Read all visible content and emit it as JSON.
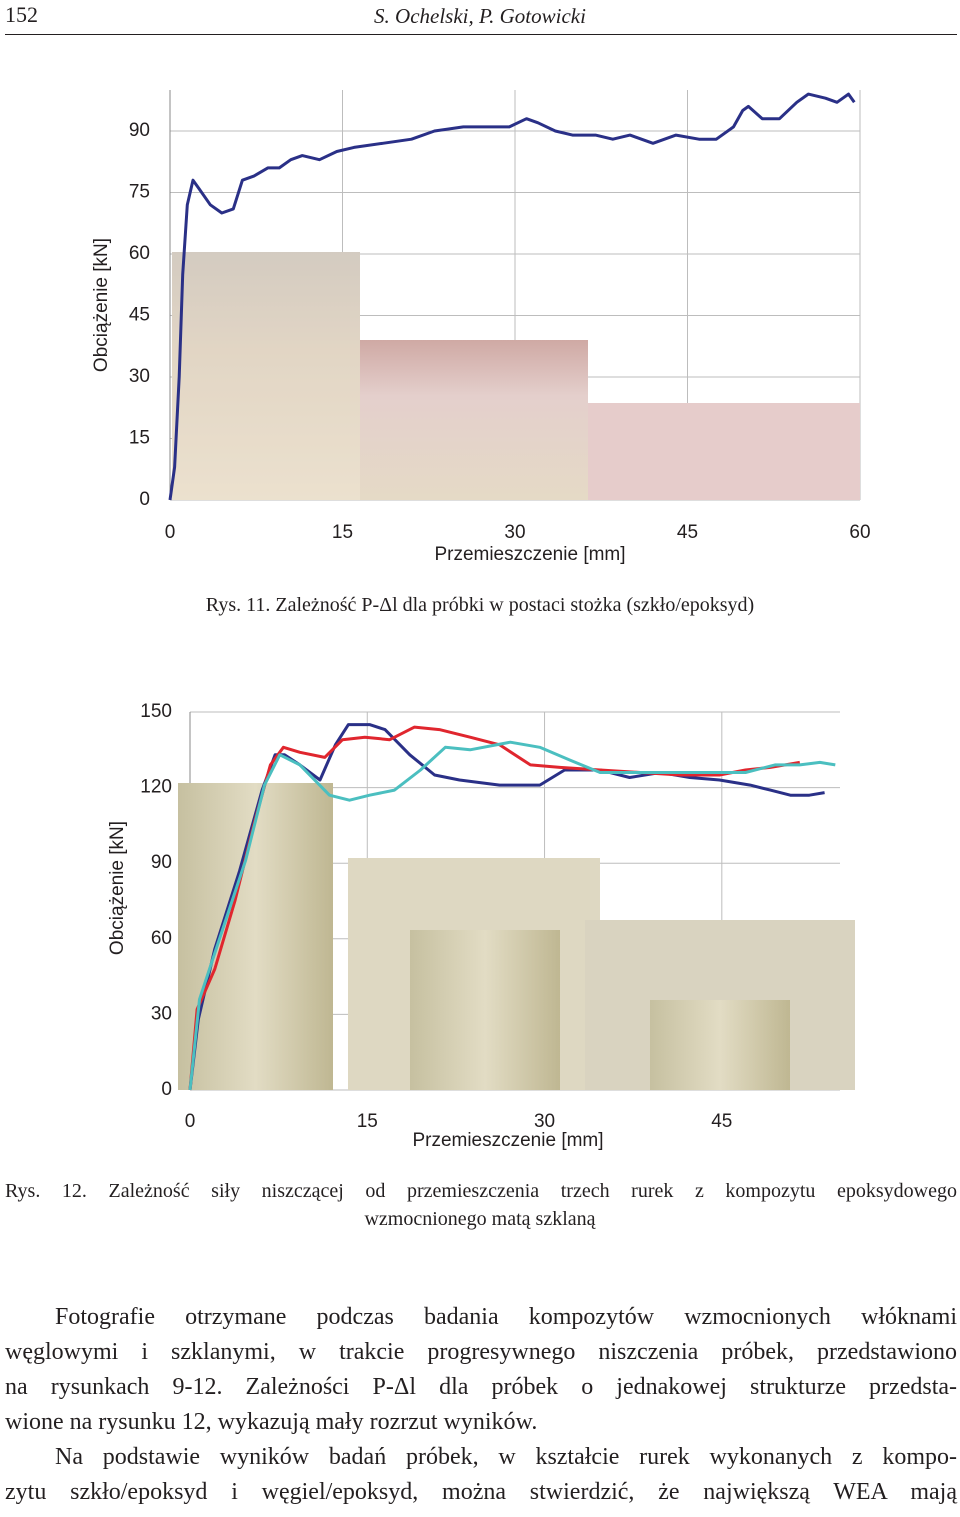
{
  "header": {
    "page_number": "152",
    "authors": "S. Ochelski, P. Gotowicki"
  },
  "chart_data": [
    {
      "type": "line",
      "x_label": "Przemieszczenie [mm]",
      "y_label": "Obciążenie [kN]",
      "xlim": [
        0,
        60
      ],
      "xticks": [
        0,
        15,
        30,
        45,
        60
      ],
      "ylim": [
        0,
        100
      ],
      "yticks": [
        0,
        15,
        30,
        45,
        60,
        75,
        90
      ],
      "grid": true,
      "series": [
        {
          "color": "#2a3087",
          "x": [
            0,
            0.4,
            0.8,
            1.1,
            1.5,
            2.0,
            2.5,
            3.5,
            4.5,
            5.5,
            6.3,
            7.3,
            8.5,
            9.5,
            10.5,
            11.5,
            13,
            14.5,
            16,
            18.5,
            21,
            23,
            25.5,
            27.5,
            29.5,
            31,
            32,
            33.5,
            35,
            37,
            38.5,
            40,
            42,
            44,
            46,
            47.5,
            49,
            49.8,
            50.3,
            51.5,
            53,
            54.5,
            55.5,
            57,
            58,
            58.5,
            59,
            59.5
          ],
          "values": [
            0,
            8,
            30,
            55,
            72,
            78,
            76,
            72,
            70,
            71,
            78,
            79,
            81,
            81,
            83,
            84,
            83,
            85,
            86,
            87,
            88,
            90,
            91,
            91,
            91,
            93,
            92,
            90,
            89,
            89,
            88,
            89,
            87,
            89,
            88,
            88,
            91,
            95,
            96,
            93,
            93,
            97,
            99,
            98,
            97,
            98,
            99,
            97
          ]
        }
      ]
    },
    {
      "type": "line",
      "x_label": "Przemieszczenie [mm]",
      "y_label": "Obciążenie [kN]",
      "xlim": [
        0,
        55
      ],
      "xticks": [
        0,
        15,
        30,
        45
      ],
      "ylim": [
        0,
        150
      ],
      "yticks": [
        0,
        30,
        60,
        90,
        120,
        150
      ],
      "grid": true,
      "series": [
        {
          "color": "#2a3087",
          "x": [
            0,
            0.7,
            2.1,
            4.2,
            6.1,
            7.2,
            8,
            9.3,
            11,
            12.3,
            13.4,
            15.2,
            16.5,
            18.6,
            20.7,
            22.8,
            26.2,
            29.6,
            31.7,
            34.7,
            37.2,
            39.8,
            42.3,
            44.8,
            47.4,
            49.1,
            50.8,
            52.4,
            53.7
          ],
          "values": [
            0,
            28,
            56,
            87,
            119,
            133,
            133,
            129,
            123,
            137,
            145,
            145,
            143,
            133,
            125,
            123,
            121,
            121,
            127,
            127,
            124,
            126,
            124,
            123,
            121,
            119,
            117,
            117,
            118
          ]
        },
        {
          "color": "#e0262e",
          "x": [
            0,
            0.6,
            2.1,
            3.8,
            5.5,
            6.8,
            7.9,
            9.3,
            11.4,
            12.9,
            14.8,
            16.9,
            19,
            21.1,
            23.7,
            26.2,
            28.8,
            31.3,
            34.7,
            38.1,
            41.5,
            44.8,
            47,
            49.1,
            51.6
          ],
          "values": [
            0,
            32,
            48,
            75,
            107,
            129,
            136,
            134,
            132,
            139,
            140,
            139,
            144,
            143,
            140,
            137,
            129,
            128,
            127,
            126,
            125,
            125,
            127,
            128,
            130
          ]
        },
        {
          "color": "#4bbfc0",
          "x": [
            0,
            0.8,
            2.5,
            4.7,
            6.3,
            7.6,
            9.3,
            11.8,
            13.5,
            15.2,
            17.3,
            19.5,
            21.6,
            23.7,
            27.1,
            29.6,
            32.1,
            34.7,
            38.1,
            41.5,
            44.8,
            47,
            49.5,
            51.6,
            53.3,
            54.6
          ],
          "values": [
            0,
            36,
            60,
            91,
            121,
            133,
            129,
            117,
            115,
            117,
            119,
            127,
            136,
            135,
            138,
            136,
            131,
            126,
            126,
            126,
            126,
            126,
            129,
            129,
            130,
            129
          ]
        }
      ]
    }
  ],
  "captions": [
    {
      "lines": [
        "Rys. 11. Zależność P-Δl dla próbki w postaci stożka (szkło/epoksyd)"
      ]
    },
    {
      "lines": [
        "Rys. 12. Zależność siły niszczącej od przemieszczenia trzech rurek z kompozytu epoksydowego",
        "wzmocnionego matą szklaną"
      ]
    }
  ],
  "body": {
    "paragraphs": [
      {
        "lines": [
          "Fotografie otrzymane podczas badania kompozytów wzmocnionych włóknami",
          "węglowymi i szklanymi, w trakcie progresywnego niszczenia próbek, przedstawiono",
          "na rysunkach 9-12. Zależności P-Δl dla próbek o jednakowej strukturze przedsta-",
          "wione na rysunku 12, wykazują mały rozrzut wyników."
        ]
      },
      {
        "lines": [
          "Na podstawie wyników badań próbek, w kształcie rurek wykonanych z kompo-",
          "zytu szkło/epoksyd i węgiel/epoksyd, można stwierdzić, że największą WEA mają"
        ]
      }
    ]
  }
}
